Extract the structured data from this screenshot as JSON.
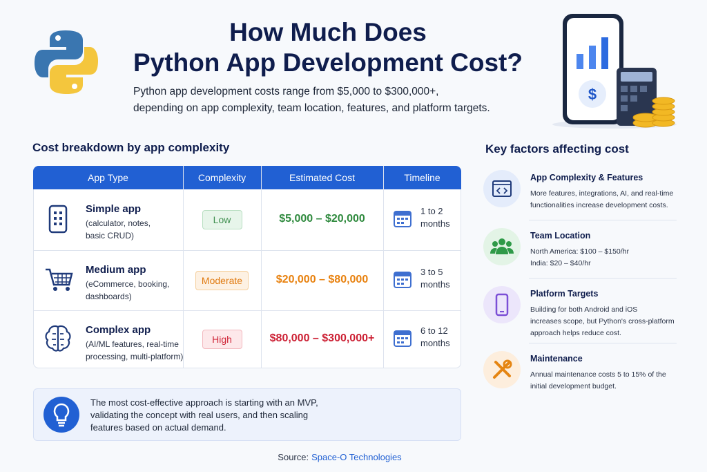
{
  "header": {
    "title_lines": [
      "How Much Does",
      "Python App Development Cost?"
    ],
    "subtitle_lines": [
      "Python app development costs range from $5,000 to $300,000+,",
      "depending on app complexity, team location, features, and platform targets."
    ]
  },
  "cost_table": {
    "heading": "Cost breakdown by app complexity",
    "columns": [
      "App Type",
      "Complexity",
      "Estimated Cost",
      "Timeline"
    ],
    "rows": [
      {
        "name": "Simple app",
        "details": [
          "(calculator, notes,",
          "basic CRUD)"
        ],
        "complexity": "Low",
        "cost": "$5,000 – $20,000",
        "timeline": [
          "1 to 2",
          "months"
        ]
      },
      {
        "name": "Medium app",
        "details": [
          "(eCommerce, booking,",
          "dashboards)"
        ],
        "complexity": "Moderate",
        "cost": "$20,000 – $80,000",
        "timeline": [
          "3 to 5",
          "months"
        ]
      },
      {
        "name": "Complex app",
        "details": [
          "(AI/ML features, real-time",
          "processing, multi-platform)"
        ],
        "complexity": "High",
        "cost": "$80,000 – $300,000+",
        "timeline": [
          "6 to 12",
          "months"
        ]
      }
    ]
  },
  "key_factors": {
    "heading": "Key factors affecting cost",
    "items": [
      {
        "title": "App Complexity & Features",
        "lines": [
          "More features, integrations, AI, and real-time",
          "functionalities increase development costs."
        ]
      },
      {
        "title": "Team Location",
        "lines": [
          "North America: $100 – $150/hr",
          "India: $20 – $40/hr"
        ]
      },
      {
        "title": "Platform Targets",
        "lines": [
          "Building for both Android and iOS",
          "increases scope, but Python's cross-platform",
          "approach helps reduce cost."
        ]
      },
      {
        "title": "Maintenance",
        "lines": [
          "Annual maintenance costs 5 to 15% of the",
          "initial development budget."
        ]
      }
    ]
  },
  "tip": {
    "lines": [
      "The most cost-effective approach is starting with an MVP,",
      "validating the concept with real users, and then scaling",
      "features based on actual demand."
    ]
  },
  "source": {
    "label": "Source:",
    "name": "Space-O Technologies"
  }
}
